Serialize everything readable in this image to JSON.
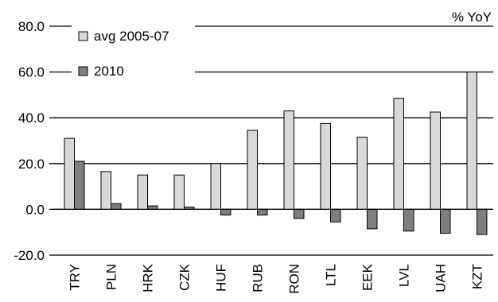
{
  "chart_data": {
    "type": "bar",
    "unit_label": "% YoY",
    "categories": [
      "TRY",
      "PLN",
      "HRK",
      "CZK",
      "HUF",
      "RUB",
      "RON",
      "LTL",
      "EEK",
      "LVL",
      "UAH",
      "KZT"
    ],
    "series": [
      {
        "name": "avg 2005-07",
        "color": "#d9d9d9",
        "values": [
          31,
          16.5,
          15,
          15,
          20,
          34.5,
          43,
          37.5,
          31.5,
          48.5,
          42.5,
          60
        ]
      },
      {
        "name": "2010",
        "color": "#7f7f7f",
        "values": [
          21,
          2.5,
          1.5,
          1,
          -2.5,
          -2.5,
          -4,
          -5.5,
          -8.5,
          -9.5,
          -10.5,
          -11
        ]
      }
    ],
    "yticks": [
      "80.0",
      "60.0",
      "40.0",
      "20.0",
      "0.0",
      "-20.0"
    ],
    "ylim": [
      -20,
      80
    ],
    "legend_position": "top-left",
    "grid": true
  }
}
